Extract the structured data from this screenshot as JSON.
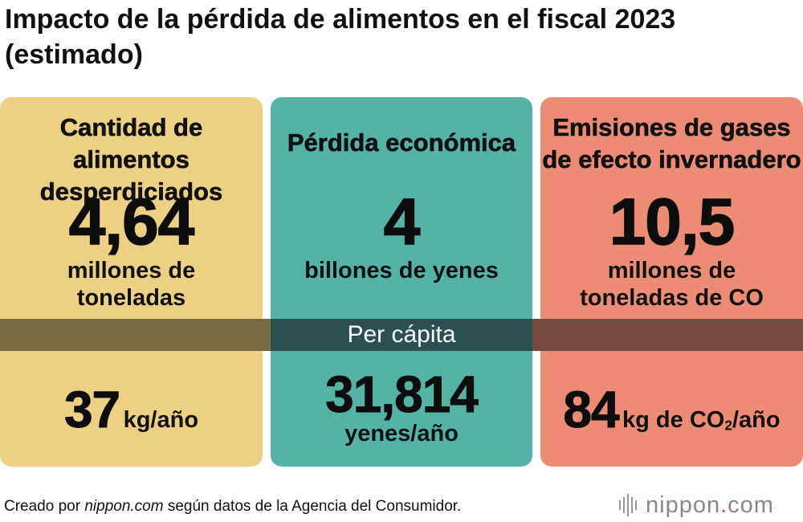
{
  "title": {
    "line1": "Impacto de la pérdida de alimentos en el fiscal 2023",
    "line2": "(estimado)"
  },
  "colors": {
    "food_card": "#eed084",
    "money_card": "#55b2a7",
    "co2_card": "#ec8c74",
    "band_left": "#7b6a43",
    "band_middle": "#2a514f",
    "band_right": "#764a3f",
    "logo_accent": "#e0462e"
  },
  "cards": {
    "food": {
      "title_line1": "Cantidad de alimentos",
      "title_line2": "desperdiciados",
      "value": "4,64",
      "unit_line1": "millones de",
      "unit_line2": "toneladas",
      "per_capita_value": "37",
      "per_capita_unit": "kg/año"
    },
    "money": {
      "title_line1": "Pérdida económica",
      "value": "4",
      "unit_line1": "billones de yenes",
      "per_capita_value": "31,814",
      "per_capita_unit": "yenes/año"
    },
    "co2": {
      "title_line1": "Emisiones de gases",
      "title_line2": "de efecto invernadero",
      "value": "10,5",
      "unit_line1": "millones de",
      "unit_line2_prefix": "toneladas de CO",
      "per_capita_value": "84",
      "per_capita_unit_prefix": "kg de CO",
      "per_capita_unit_suffix": "/año",
      "subscript": "2"
    }
  },
  "band_label": "Per cápita",
  "footer": {
    "prefix": "Creado por ",
    "source_site": "nippon.com",
    "suffix": " según datos de la Agencia del Consumidor."
  },
  "logo": {
    "icon": "nippon-bars-icon",
    "name": "nippon",
    "dot": ".",
    "tld": "com"
  }
}
